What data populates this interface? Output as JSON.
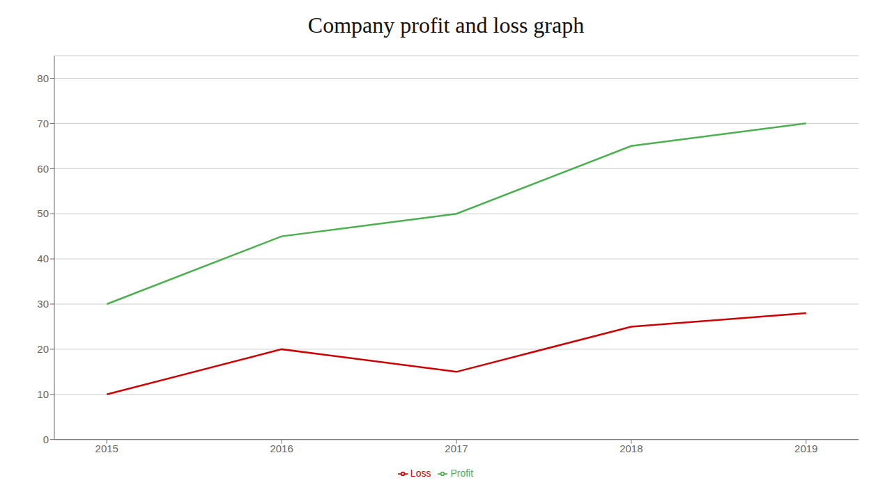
{
  "chart_data": {
    "type": "line",
    "title": "Company profit and loss graph",
    "x": [
      2015,
      2016,
      2017,
      2018,
      2019
    ],
    "xlim": [
      2014.7,
      2019.3
    ],
    "xticks": [
      2015,
      2016,
      2017,
      2018,
      2019
    ],
    "ylim": [
      0,
      85
    ],
    "yticks": [
      0,
      10,
      20,
      30,
      40,
      50,
      60,
      70,
      80
    ],
    "grid": true,
    "legend": "bottom",
    "series": [
      {
        "name": "Profit",
        "color": "#4CAF50",
        "values": [
          30,
          45,
          50,
          65,
          70
        ]
      },
      {
        "name": "Loss",
        "color": "#CC0000",
        "values": [
          10,
          20,
          15,
          25,
          28
        ]
      }
    ]
  }
}
